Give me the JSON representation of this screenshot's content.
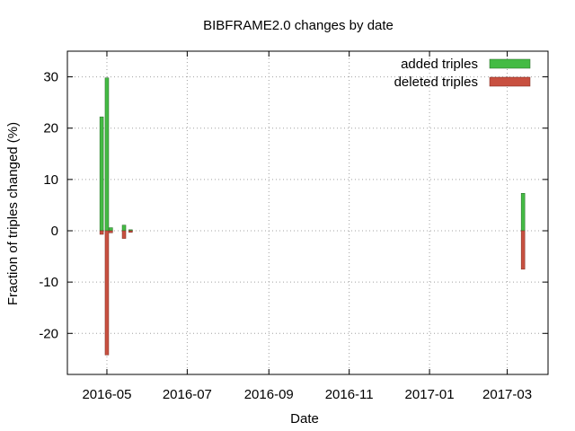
{
  "chart_data": {
    "type": "bar",
    "title": "BIBFRAME2.0 changes by date",
    "xlabel": "Date",
    "ylabel": "Fraction of triples changed (%)",
    "xlim": [
      "2016-04-01",
      "2017-04-01"
    ],
    "ylim": [
      -28,
      35
    ],
    "x_ticks": [
      "2016-05",
      "2016-07",
      "2016-09",
      "2016-11",
      "2017-01",
      "2017-03"
    ],
    "y_ticks": [
      -20,
      -10,
      0,
      10,
      20,
      30
    ],
    "grid": true,
    "legend_position": "top-right",
    "series": [
      {
        "name": "added triples",
        "color": "#44bb44",
        "points": [
          {
            "x": "2016-04-27",
            "y": 22.2
          },
          {
            "x": "2016-05-01",
            "y": 29.8
          },
          {
            "x": "2016-05-04",
            "y": 0.6
          },
          {
            "x": "2016-05-14",
            "y": 1.1
          },
          {
            "x": "2016-05-19",
            "y": 0.2
          },
          {
            "x": "2017-03-13",
            "y": 7.3
          }
        ]
      },
      {
        "name": "deleted triples",
        "color": "#c85040",
        "points": [
          {
            "x": "2016-04-27",
            "y": -0.7
          },
          {
            "x": "2016-05-01",
            "y": -24.2
          },
          {
            "x": "2016-05-04",
            "y": -0.4
          },
          {
            "x": "2016-05-14",
            "y": -1.5
          },
          {
            "x": "2016-05-19",
            "y": -0.3
          },
          {
            "x": "2017-03-13",
            "y": -7.5
          }
        ]
      }
    ]
  }
}
